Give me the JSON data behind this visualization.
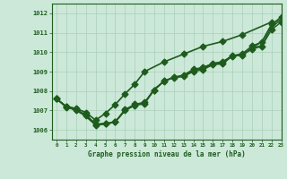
{
  "title": "Graphe pression niveau de la mer (hPa)",
  "background_color": "#cce8d8",
  "grid_color": "#aacfbb",
  "line_color": "#1e5c1e",
  "xlim": [
    -0.5,
    23
  ],
  "ylim": [
    1005.5,
    1012.5
  ],
  "yticks": [
    1006,
    1007,
    1008,
    1009,
    1010,
    1011,
    1012
  ],
  "xticks": [
    0,
    1,
    2,
    3,
    4,
    5,
    6,
    7,
    8,
    9,
    10,
    11,
    12,
    13,
    14,
    15,
    16,
    17,
    18,
    19,
    20,
    21,
    22,
    23
  ],
  "series": [
    {
      "y": [
        1007.6,
        1007.2,
        1007.0,
        1006.8,
        1006.3,
        1006.35,
        1006.4,
        1007.0,
        1007.25,
        1007.35,
        1008.05,
        1008.5,
        1008.7,
        1008.75,
        1009.0,
        1009.1,
        1009.35,
        1009.4,
        1009.8,
        1009.85,
        1010.15,
        1010.3,
        1011.15,
        1011.55
      ],
      "marker": true,
      "lw": 1.0
    },
    {
      "y": [
        1007.6,
        1007.2,
        1007.0,
        1006.7,
        1006.25,
        1006.3,
        1006.4,
        1007.0,
        1007.3,
        1007.35,
        1008.1,
        1008.5,
        1008.7,
        1008.75,
        1009.05,
        1009.15,
        1009.4,
        1009.45,
        1009.8,
        1009.85,
        1010.2,
        1010.35,
        1011.3,
        1011.65
      ],
      "marker": false,
      "lw": 1.0
    },
    {
      "y": [
        1007.6,
        1007.2,
        1007.1,
        1006.7,
        1006.25,
        1006.3,
        1006.4,
        1007.0,
        1007.3,
        1007.4,
        1008.1,
        1008.5,
        1008.7,
        1008.8,
        1009.1,
        1009.2,
        1009.42,
        1009.48,
        1009.82,
        1009.88,
        1010.22,
        1010.52,
        1011.42,
        1011.72
      ],
      "marker": false,
      "lw": 1.0
    },
    {
      "y": [
        1007.6,
        1007.15,
        1007.05,
        1006.75,
        1006.25,
        1006.32,
        1006.42,
        1007.05,
        1007.32,
        1007.42,
        1008.05,
        1008.52,
        1008.72,
        1008.82,
        1009.12,
        1009.22,
        1009.42,
        1009.52,
        1009.82,
        1009.92,
        1010.32,
        1010.52,
        1011.42,
        1011.82
      ],
      "marker": true,
      "lw": 1.0
    },
    {
      "y": [
        1007.6,
        1007.2,
        1007.1,
        1006.9,
        1006.5,
        1006.85,
        1007.3,
        1007.85,
        1008.35,
        1009.0,
        1009.5,
        1009.9,
        1010.3,
        1010.55,
        1010.9,
        1011.55
      ],
      "x": [
        0,
        1,
        2,
        3,
        4,
        5,
        6,
        7,
        8,
        9,
        11,
        13,
        15,
        17,
        19,
        22
      ],
      "marker": true,
      "lw": 1.2,
      "diverge": true
    }
  ],
  "marker_size": 3.5,
  "marker_style": "D"
}
